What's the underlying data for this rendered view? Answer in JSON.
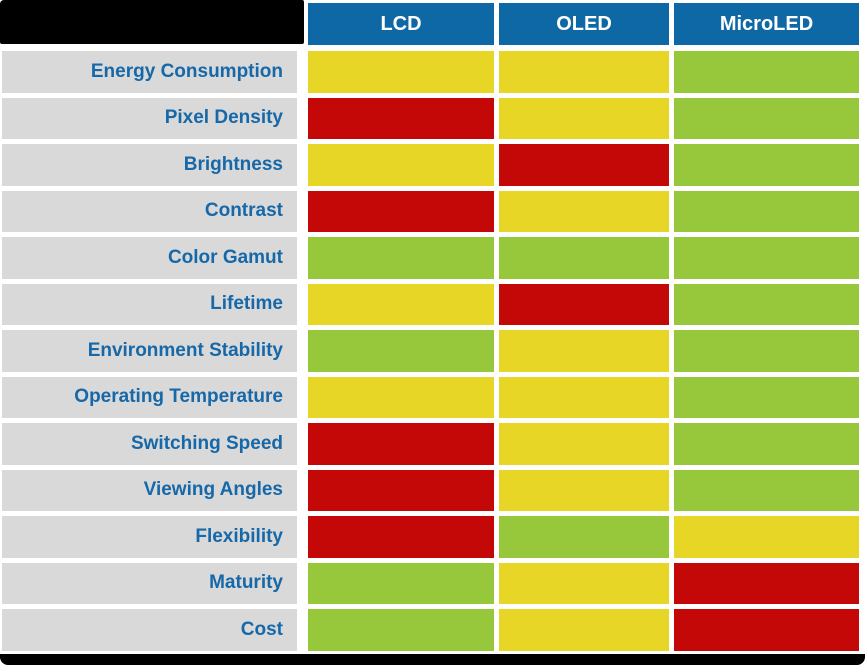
{
  "chart_data": {
    "type": "heatmap",
    "title": "",
    "columns": [
      "LCD",
      "OLED",
      "MicroLED"
    ],
    "rows": [
      "Energy Consumption",
      "Pixel Density",
      "Brightness",
      "Contrast",
      "Color Gamut",
      "Lifetime",
      "Environment Stability",
      "Operating Temperature",
      "Switching Speed",
      "Viewing Angles",
      "Flexibility",
      "Maturity",
      "Cost"
    ],
    "values": [
      [
        "medium",
        "medium",
        "good"
      ],
      [
        "poor",
        "medium",
        "good"
      ],
      [
        "medium",
        "poor",
        "good"
      ],
      [
        "poor",
        "medium",
        "good"
      ],
      [
        "good",
        "good",
        "good"
      ],
      [
        "medium",
        "poor",
        "good"
      ],
      [
        "good",
        "medium",
        "good"
      ],
      [
        "medium",
        "medium",
        "good"
      ],
      [
        "poor",
        "medium",
        "good"
      ],
      [
        "poor",
        "medium",
        "good"
      ],
      [
        "poor",
        "good",
        "medium"
      ],
      [
        "good",
        "medium",
        "poor"
      ],
      [
        "good",
        "medium",
        "poor"
      ]
    ],
    "color_scale": {
      "good": "#97C83C",
      "medium": "#E7D626",
      "poor": "#C40808"
    },
    "legend_position": "none",
    "grid": "white-gaps"
  },
  "colors": {
    "header_bg": "#0E68A6",
    "header_text": "#FFFFFF",
    "row_label_bg": "#D9D9D9",
    "row_label_text": "#1668A8",
    "redaction_bar": "#000000",
    "background": "#FFFFFF"
  }
}
